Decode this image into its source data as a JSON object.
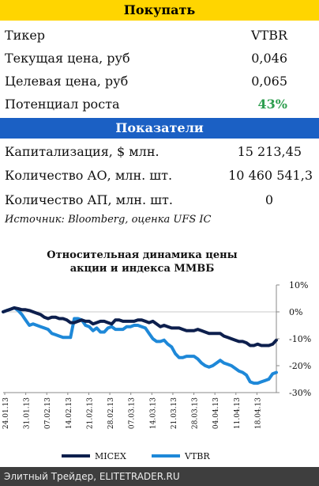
{
  "buy_header": "Покупать",
  "rows_top": [
    {
      "label": "Тикер",
      "value": "VTBR"
    },
    {
      "label": "Текущая цена, руб",
      "value": "0,046"
    },
    {
      "label": "Целевая цена, руб",
      "value": "0,065"
    },
    {
      "label": "Потенциал роста",
      "value": "43%"
    }
  ],
  "indicators_header": "Показатели",
  "rows_ind": [
    {
      "label": "Капитализация, $ млн.",
      "value": "15 213,45"
    },
    {
      "label": "Количество АО, млн. шт.",
      "value": "10 460 541,3"
    },
    {
      "label": "Количество АП, млн. шт.",
      "value": "0"
    }
  ],
  "source": "Источник: Bloomberg, оценка UFS IC",
  "colors": {
    "buy_band": "#ffd500",
    "ind_band": "#1b60c4",
    "potential": "#2e9e4f",
    "micex": "#0d1f4d",
    "vtbr": "#1e88d8"
  },
  "chart_data": {
    "type": "line",
    "title": "Относительная динамика цены акции и индекса ММВБ",
    "title_lines": [
      "Относительная динамика цены",
      "акции и индекса ММВБ"
    ],
    "ylim": [
      -30,
      10
    ],
    "yticks": [
      10,
      0,
      -10,
      -20,
      -30
    ],
    "ytick_labels": [
      "10%",
      "0%",
      "-10%",
      "-20%",
      "-30%"
    ],
    "x_tick_labels": [
      "24.01.13",
      "31.01.13",
      "07.02.13",
      "14.02.13",
      "21.02.13",
      "28.02.13",
      "07.03.13",
      "14.03.13",
      "21.03.13",
      "28.03.13",
      "04.04.13",
      "11.04.13",
      "18.04.13"
    ],
    "series": [
      {
        "name": "MICEX",
        "values": [
          0,
          0.5,
          1,
          1.5,
          1.2,
          0.8,
          0.8,
          0.5,
          0,
          -0.5,
          -1,
          -2,
          -2.5,
          -2,
          -2,
          -2.5,
          -2.5,
          -3,
          -4,
          -4,
          -3.5,
          -3,
          -3.5,
          -3.5,
          -4.5,
          -4,
          -3.5,
          -3.5,
          -4,
          -4.5,
          -3,
          -3,
          -3.5,
          -3.5,
          -3.5,
          -3.5,
          -3,
          -3,
          -3.5,
          -4,
          -3.5,
          -4.5,
          -5.5,
          -5,
          -5.5,
          -6,
          -6,
          -6,
          -6.5,
          -7,
          -7,
          -7,
          -6.5,
          -7,
          -7.5,
          -8,
          -8,
          -8,
          -8,
          -9,
          -9.5,
          -10,
          -10.5,
          -11,
          -11,
          -11.5,
          -12.5,
          -12.5,
          -12,
          -12.5,
          -12.5,
          -12.5,
          -12,
          -10.5
        ]
      },
      {
        "name": "VTBR",
        "values": [
          0,
          0.5,
          1,
          1.5,
          0.5,
          -1,
          -3,
          -5,
          -4.5,
          -5,
          -5.5,
          -6,
          -6.5,
          -8,
          -8.5,
          -9,
          -9.5,
          -9.5,
          -9.5,
          -2.5,
          -2.5,
          -3,
          -5,
          -5.5,
          -7,
          -6,
          -7.5,
          -7.5,
          -6,
          -5.5,
          -6.5,
          -6.5,
          -6.5,
          -5.5,
          -5.5,
          -5,
          -5,
          -5.5,
          -6,
          -8,
          -10,
          -11,
          -11,
          -10.5,
          -12,
          -13,
          -15.5,
          -17,
          -17,
          -16.5,
          -16.5,
          -16.5,
          -17.5,
          -19,
          -20,
          -20.5,
          -20,
          -19,
          -18,
          -19,
          -19.5,
          -20,
          -21,
          -22,
          -22.5,
          -23.5,
          -26,
          -26.5,
          -26.5,
          -26,
          -25.5,
          -25,
          -23,
          -22.5
        ]
      }
    ],
    "legend_position": "bottom"
  },
  "footer": "Элитный Трейдер, ELITETRADER.RU"
}
